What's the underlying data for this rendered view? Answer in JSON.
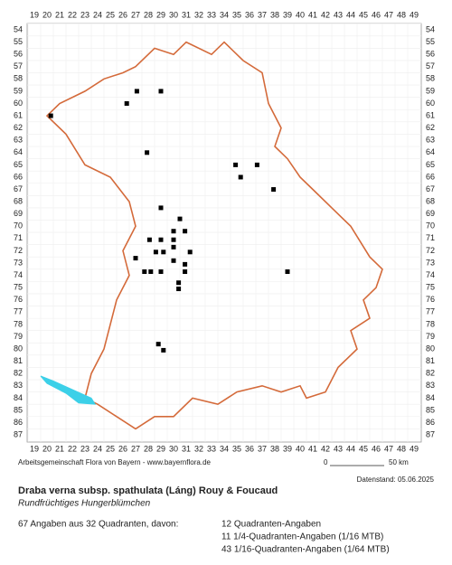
{
  "map": {
    "x_labels": [
      19,
      20,
      21,
      22,
      23,
      24,
      25,
      26,
      27,
      28,
      29,
      30,
      31,
      32,
      33,
      34,
      35,
      36,
      37,
      38,
      39,
      40,
      41,
      42,
      43,
      44,
      45,
      46,
      47,
      48,
      49
    ],
    "y_labels": [
      54,
      55,
      56,
      57,
      58,
      59,
      60,
      61,
      62,
      63,
      64,
      65,
      66,
      67,
      68,
      69,
      70,
      71,
      72,
      73,
      74,
      75,
      76,
      77,
      78,
      79,
      80,
      81,
      82,
      83,
      84,
      85,
      86,
      87
    ],
    "records": [
      [
        27.1,
        59
      ],
      [
        29,
        59
      ],
      [
        26.3,
        60
      ],
      [
        20.3,
        61
      ],
      [
        27.9,
        64
      ],
      [
        34.9,
        65
      ],
      [
        36.6,
        65
      ],
      [
        35.3,
        66
      ],
      [
        37.9,
        67
      ],
      [
        29,
        68.5
      ],
      [
        30.5,
        69.4
      ],
      [
        28.1,
        71.1
      ],
      [
        29,
        71.1
      ],
      [
        30,
        70.4
      ],
      [
        30.9,
        70.4
      ],
      [
        30,
        71.1
      ],
      [
        28.6,
        72.1
      ],
      [
        29.2,
        72.1
      ],
      [
        30,
        71.7
      ],
      [
        31.3,
        72.1
      ],
      [
        30,
        72.8
      ],
      [
        27,
        72.6
      ],
      [
        27.7,
        73.7
      ],
      [
        28.2,
        73.7
      ],
      [
        29,
        73.7
      ],
      [
        30.9,
        73.1
      ],
      [
        30.9,
        73.7
      ],
      [
        39,
        73.7
      ],
      [
        30.4,
        74.6
      ],
      [
        30.4,
        75.1
      ],
      [
        28.8,
        79.6
      ],
      [
        29.2,
        80.1
      ]
    ]
  },
  "footer": {
    "credit": "Arbeitsgemeinschaft Flora von Bayern - www.bayernflora.de",
    "scale_start": "0",
    "scale_end": "50 km",
    "date": "Datenstand: 05.06.2025"
  },
  "species": {
    "name": "Draba verna subsp. spathulata (Láng) Rouy & Foucaud",
    "common_name": "Rundfrüchtiges Hungerblümchen"
  },
  "summary": {
    "total": "67 Angaben aus 32 Quadranten, davon:",
    "details": [
      "12 Quadranten-Angaben",
      "11 1/4-Quadranten-Angaben (1/16 MTB)",
      "43 1/16-Quadranten-Angaben (1/64 MTB)"
    ]
  }
}
